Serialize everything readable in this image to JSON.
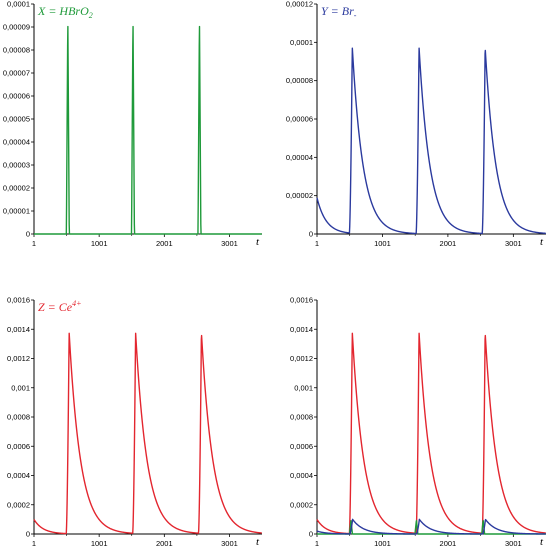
{
  "chart_data": [
    {
      "type": "line",
      "title_main": "X = HBrO",
      "title_sub": "2",
      "title_color": "#1f9a3a",
      "xlabel": "t",
      "x_ticks": [
        "1",
        "1001",
        "2001",
        "3001"
      ],
      "y_ticks": [
        "0",
        "0,00001",
        "0,00002",
        "0,00003",
        "0,00004",
        "0,00005",
        "0,00006",
        "0,00007",
        "0,00008",
        "0,00009",
        "0,0001"
      ],
      "xlim": [
        1,
        3500
      ],
      "ylim": [
        0,
        0.0001
      ],
      "series": [
        {
          "color": "#1f9a3a",
          "shape": "spike",
          "peaks": [
            520,
            1520,
            2540
          ],
          "peak": 9.45e-05,
          "width": 22,
          "base": 0
        }
      ]
    },
    {
      "type": "line",
      "title_main": "Y = Br",
      "title_sub": "-",
      "title_color": "#2b3a9e",
      "xlabel": "t",
      "x_ticks": [
        "1",
        "1001",
        "2001",
        "3001"
      ],
      "y_ticks": [
        "0",
        "0,00002",
        "0,00004",
        "0,00006",
        "0,00008",
        "0,0001",
        "0,00012"
      ],
      "xlim": [
        1,
        3500
      ],
      "ylim": [
        0,
        0.00012
      ],
      "series": [
        {
          "color": "#2b3a9e",
          "shape": "relax",
          "start": 1.9e-05,
          "peaks": [
            540,
            1560,
            2570
          ],
          "peak": 9.75e-05,
          "rise": 45,
          "decay": 165
        }
      ]
    },
    {
      "type": "line",
      "title_main": "Z = Ce",
      "title_sup": "4+",
      "title_color": "#e3262f",
      "xlabel": "t",
      "x_ticks": [
        "1",
        "1001",
        "2001",
        "3001"
      ],
      "y_ticks": [
        "0",
        "0,0002",
        "0,0004",
        "0,0006",
        "0,0008",
        "0,001",
        "0,0012",
        "0,0014",
        "0,0016"
      ],
      "xlim": [
        1,
        3500
      ],
      "ylim": [
        0,
        0.0016
      ],
      "series": [
        {
          "color": "#e3262f",
          "shape": "relax",
          "start": 0.0001,
          "peaks": [
            540,
            1560,
            2570
          ],
          "peak": 0.00138,
          "rise": 45,
          "decay": 175
        }
      ]
    },
    {
      "type": "line",
      "xlabel": "t",
      "x_ticks": [
        "1",
        "1001",
        "2001",
        "3001"
      ],
      "y_ticks": [
        "0",
        "0,0002",
        "0,0004",
        "0,0006",
        "0,0008",
        "0,001",
        "0,0012",
        "0,0014",
        "0,0016"
      ],
      "xlim": [
        1,
        3500
      ],
      "ylim": [
        0,
        0.0016
      ],
      "series": [
        {
          "color": "#e3262f",
          "shape": "relax",
          "start": 0.0001,
          "peaks": [
            540,
            1560,
            2570
          ],
          "peak": 0.00138,
          "rise": 45,
          "decay": 175
        },
        {
          "color": "#1f9a3a",
          "shape": "spike",
          "peaks": [
            520,
            1520,
            2540
          ],
          "peak": 9.5e-05,
          "width": 22,
          "base": 0
        },
        {
          "color": "#2b3a9e",
          "shape": "relax",
          "start": 2e-05,
          "peaks": [
            545,
            1565,
            2575
          ],
          "peak": 0.0001,
          "rise": 45,
          "decay": 165
        }
      ]
    }
  ]
}
